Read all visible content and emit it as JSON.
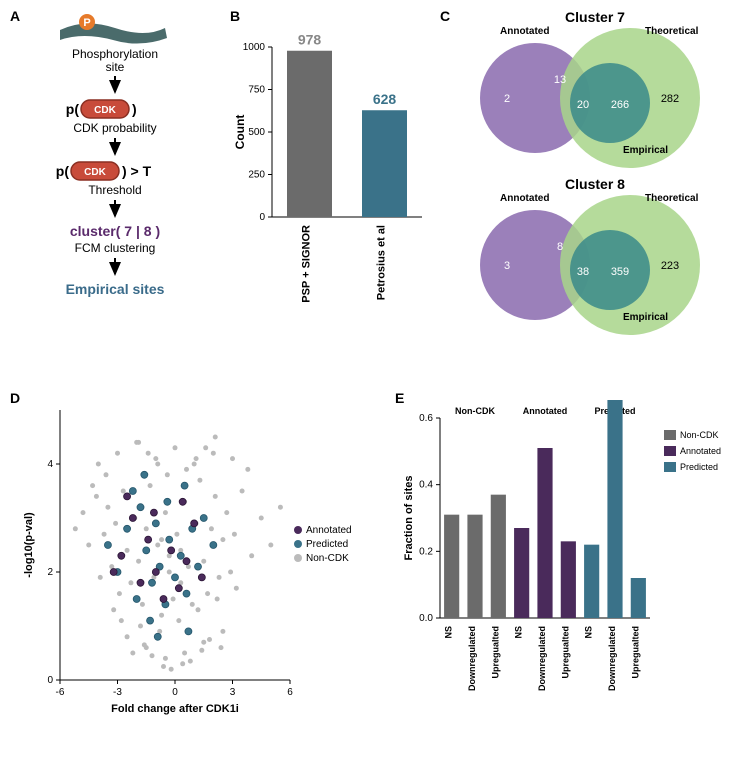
{
  "labels": {
    "A": "A",
    "B": "B",
    "C": "C",
    "D": "D",
    "E": "E"
  },
  "A": {
    "steps": {
      "site_caption": "Phosphorylation\nsite",
      "prob_prefix": "p(",
      "prob_suffix": ")",
      "prob_caption": "CDK probability",
      "thresh_prefix": "p(",
      "thresh_suffix": ") > T",
      "thresh_caption": "Threshold",
      "cluster": "cluster( 7 | 8 )",
      "cluster_caption": "FCM clustering",
      "cdk": "CDK",
      "empirical": "Empirical sites"
    },
    "colors": {
      "cluster": "#5a2a6b",
      "empirical": "#3a6b8a"
    }
  },
  "B": {
    "title": "",
    "ylabel": "Count",
    "categories": [
      "PSP + SIGNOR",
      "Petrosius et al"
    ],
    "values": [
      978,
      628
    ],
    "value_labels": [
      "978",
      "628"
    ],
    "colors": [
      "#6b6b6b",
      "#3a7289"
    ],
    "label_colors": [
      "#888",
      "#3a7289"
    ],
    "ylim": [
      0,
      1000
    ],
    "ytick_step": 250,
    "bar_width": 0.6,
    "fontsize": 14
  },
  "C": {
    "title1": "Cluster 7",
    "title2": "Cluster 8",
    "set_labels": {
      "annotated": "Annotated",
      "theoretical": "Theoretical",
      "empirical": "Empirical"
    },
    "c7": {
      "a_only": "2",
      "a_t": "13",
      "a_t_e": "20",
      "t_e": "266",
      "t_only": "282"
    },
    "c8": {
      "a_only": "3",
      "a_t": "8",
      "a_t_e": "38",
      "t_e": "359",
      "t_only": "223"
    },
    "colors": {
      "annotated": "#8a6aae",
      "theoretical": "#a8d58a",
      "empirical": "#3a8a8a"
    }
  },
  "D": {
    "xlabel": "Fold change after CDK1i",
    "ylabel": "-log10(p-val)",
    "xlim": [
      -6,
      6
    ],
    "xtick_step": 3,
    "ylim": [
      0,
      5
    ],
    "ytick_step": 2,
    "legend": {
      "annotated": "Annotated",
      "predicted": "Predicted",
      "noncdk": "Non-CDK"
    },
    "colors": {
      "annotated": "#4a2a5b",
      "predicted": "#3a7289",
      "noncdk": "#bbbbbb"
    },
    "marker_size": 3.5,
    "points_noncdk": [
      [
        -5.2,
        2.8
      ],
      [
        -4.8,
        3.1
      ],
      [
        -4.5,
        2.5
      ],
      [
        -4.1,
        3.4
      ],
      [
        -3.9,
        1.9
      ],
      [
        -3.7,
        2.7
      ],
      [
        -3.5,
        3.2
      ],
      [
        -3.3,
        2.1
      ],
      [
        -3.1,
        2.9
      ],
      [
        -2.9,
        1.6
      ],
      [
        -2.7,
        3.5
      ],
      [
        -2.5,
        2.4
      ],
      [
        -2.3,
        1.8
      ],
      [
        -2.1,
        3.0
      ],
      [
        -1.9,
        2.2
      ],
      [
        -1.7,
        1.4
      ],
      [
        -1.5,
        2.8
      ],
      [
        -1.3,
        3.6
      ],
      [
        -1.1,
        1.9
      ],
      [
        -0.9,
        2.5
      ],
      [
        -0.7,
        1.2
      ],
      [
        -0.5,
        3.1
      ],
      [
        -0.3,
        2.0
      ],
      [
        -0.1,
        1.5
      ],
      [
        0.1,
        2.7
      ],
      [
        0.3,
        1.8
      ],
      [
        0.5,
        3.3
      ],
      [
        0.7,
        2.1
      ],
      [
        0.9,
        1.4
      ],
      [
        1.1,
        2.9
      ],
      [
        1.3,
        3.7
      ],
      [
        1.5,
        2.2
      ],
      [
        1.7,
        1.6
      ],
      [
        1.9,
        2.8
      ],
      [
        2.1,
        3.4
      ],
      [
        2.3,
        1.9
      ],
      [
        2.5,
        2.6
      ],
      [
        2.7,
        3.1
      ],
      [
        2.9,
        2.0
      ],
      [
        3.1,
        2.7
      ],
      [
        3.5,
        3.5
      ],
      [
        4.0,
        2.3
      ],
      [
        4.5,
        3.0
      ],
      [
        5.0,
        2.5
      ],
      [
        5.5,
        3.2
      ],
      [
        -4.0,
        4.0
      ],
      [
        -3.0,
        4.2
      ],
      [
        -2.0,
        4.4
      ],
      [
        -1.0,
        4.1
      ],
      [
        0,
        4.3
      ],
      [
        1.0,
        4.0
      ],
      [
        2.0,
        4.2
      ],
      [
        3.0,
        4.1
      ],
      [
        -2.5,
        0.8
      ],
      [
        -1.5,
        0.6
      ],
      [
        -0.5,
        0.4
      ],
      [
        0.5,
        0.5
      ],
      [
        1.5,
        0.7
      ],
      [
        2.5,
        0.9
      ],
      [
        -3.2,
        1.3
      ],
      [
        -2.8,
        1.1
      ],
      [
        -1.8,
        1.0
      ],
      [
        -0.8,
        0.9
      ],
      [
        0.2,
        1.1
      ],
      [
        1.2,
        1.3
      ],
      [
        2.2,
        1.5
      ],
      [
        3.2,
        1.7
      ],
      [
        -0.2,
        0.2
      ],
      [
        0.4,
        0.3
      ],
      [
        -0.6,
        0.25
      ],
      [
        0.8,
        0.35
      ],
      [
        -1.2,
        0.45
      ],
      [
        1.4,
        0.55
      ],
      [
        -1.6,
        0.65
      ],
      [
        1.8,
        0.75
      ],
      [
        -2.2,
        0.5
      ],
      [
        2.4,
        0.6
      ],
      [
        -0.4,
        3.8
      ],
      [
        0.6,
        3.9
      ],
      [
        -0.9,
        4.0
      ],
      [
        1.1,
        4.1
      ],
      [
        -1.4,
        4.2
      ],
      [
        1.6,
        4.3
      ],
      [
        -1.9,
        4.4
      ],
      [
        2.1,
        4.5
      ],
      [
        -3.6,
        3.8
      ],
      [
        3.8,
        3.9
      ],
      [
        -4.3,
        3.6
      ],
      [
        -0.3,
        2.3
      ],
      [
        0.3,
        2.4
      ],
      [
        -0.7,
        2.6
      ]
    ],
    "points_predicted": [
      [
        -3.0,
        2.0
      ],
      [
        -2.5,
        2.8
      ],
      [
        -2.0,
        1.5
      ],
      [
        -1.8,
        3.2
      ],
      [
        -1.5,
        2.4
      ],
      [
        -1.2,
        1.8
      ],
      [
        -1.0,
        2.9
      ],
      [
        -0.8,
        2.1
      ],
      [
        -0.5,
        1.4
      ],
      [
        -0.3,
        2.6
      ],
      [
        0,
        1.9
      ],
      [
        0.3,
        2.3
      ],
      [
        0.6,
        1.6
      ],
      [
        0.9,
        2.8
      ],
      [
        1.2,
        2.1
      ],
      [
        1.5,
        3.0
      ],
      [
        2.0,
        2.5
      ],
      [
        -2.2,
        3.5
      ],
      [
        -1.6,
        3.8
      ],
      [
        -0.4,
        3.3
      ],
      [
        0.5,
        3.6
      ],
      [
        -3.5,
        2.5
      ],
      [
        -0.9,
        0.8
      ],
      [
        0.7,
        0.9
      ],
      [
        -1.3,
        1.1
      ]
    ],
    "points_annotated": [
      [
        -2.8,
        2.3
      ],
      [
        -2.2,
        3.0
      ],
      [
        -1.8,
        1.8
      ],
      [
        -1.4,
        2.6
      ],
      [
        -1.0,
        2.0
      ],
      [
        -0.6,
        1.5
      ],
      [
        -0.2,
        2.4
      ],
      [
        0.2,
        1.7
      ],
      [
        0.6,
        2.2
      ],
      [
        1.0,
        2.9
      ],
      [
        1.4,
        1.9
      ],
      [
        -2.5,
        3.4
      ],
      [
        -1.1,
        3.1
      ],
      [
        0.4,
        3.3
      ],
      [
        -3.2,
        2.0
      ]
    ]
  },
  "E": {
    "ylabel": "Fraction of sites",
    "group_titles": [
      "Non-CDK",
      "Annotated",
      "Predicted"
    ],
    "categories": [
      "NS",
      "Downregulated",
      "Upregualted"
    ],
    "legend": {
      "noncdk": "Non-CDK",
      "annotated": "Annotated",
      "predicted": "Predicted"
    },
    "values": {
      "noncdk": [
        0.31,
        0.31,
        0.37
      ],
      "annotated": [
        0.27,
        0.51,
        0.23
      ],
      "predicted": [
        0.22,
        0.66,
        0.12
      ]
    },
    "colors": {
      "noncdk": "#6b6b6b",
      "annotated": "#4a2a5b",
      "predicted": "#3a7289"
    },
    "ylim": [
      0,
      0.6
    ],
    "ytick_step": 0.2,
    "bar_width": 0.65,
    "fontsize": 10
  }
}
